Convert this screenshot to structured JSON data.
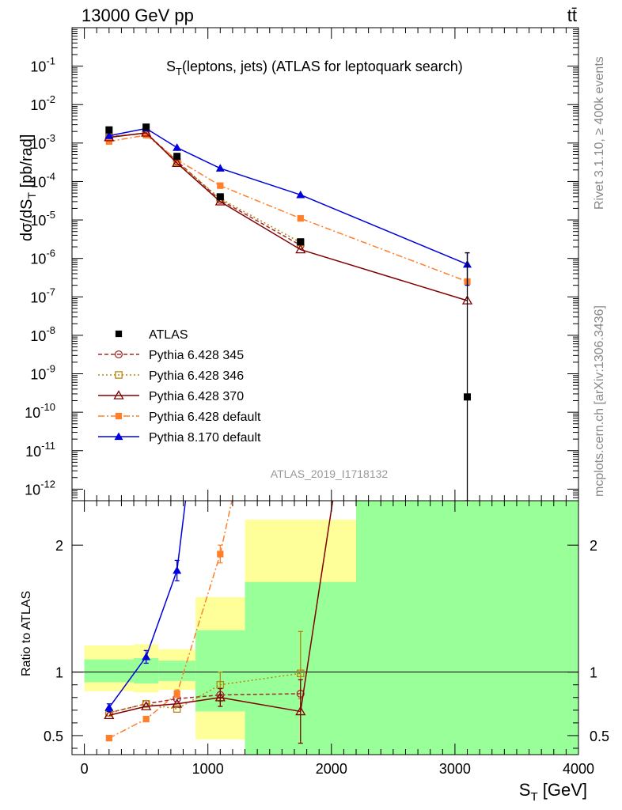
{
  "header": {
    "left": "13000 GeV pp",
    "right": "tt̄"
  },
  "side_labels": {
    "top": "Rivet 3.1.10, ≥ 400k events",
    "bottom": "mcplots.cern.ch [arXiv:1306.3436]"
  },
  "colors": {
    "atlas": "#000000",
    "p345": "#a52a2a",
    "p346": "#b8860b",
    "p370": "#800000",
    "p6def": "#ff7f2a",
    "p8def": "#0000dd",
    "band_green": "#99ff99",
    "band_yellow": "#ffff99"
  },
  "chart_data": [
    {
      "type": "line",
      "panel": "main",
      "title": "S_T(leptons, jets) (ATLAS for leptoquark search)",
      "watermark": "ATLAS_2019_I1718132",
      "ylabel": "dσ/dS_T [pb/rad]",
      "yscale": "log",
      "ylim": [
        5e-13,
        1
      ],
      "xlim": [
        -100,
        4000
      ],
      "ytick_labels": [
        "10^-12",
        "10^-11",
        "10^-10",
        "10^-9",
        "10^-8",
        "10^-7",
        "10^-6",
        "10^-5",
        "10^-4",
        "10^-3",
        "10^-2",
        "10^-1"
      ],
      "legend_position": "lower-left",
      "series": [
        {
          "key": "atlas",
          "name": "ATLAS",
          "marker": "square",
          "x": [
            200,
            500,
            750,
            1100,
            1750,
            3100
          ],
          "y": [
            0.0022,
            0.0026,
            0.00045,
            4e-05,
            2.7e-06,
            2.5e-10
          ],
          "yerr_low": [
            null,
            null,
            null,
            null,
            null,
            5e-13
          ],
          "yerr_high": [
            null,
            null,
            null,
            null,
            null,
            1.4e-06
          ]
        },
        {
          "key": "p345",
          "name": "Pythia 6.428 345",
          "line": "dashed",
          "marker": "open-circle",
          "x": [
            200,
            500,
            750,
            1100,
            1750
          ],
          "y": [
            0.00145,
            0.0018,
            0.00034,
            3.3e-05,
            2.2e-06
          ]
        },
        {
          "key": "p346",
          "name": "Pythia 6.428 346",
          "line": "dotted",
          "marker": "open-square",
          "x": [
            200,
            500,
            750,
            1100,
            1750
          ],
          "y": [
            0.00145,
            0.0018,
            0.00032,
            3.6e-05,
            2.6e-06
          ]
        },
        {
          "key": "p370",
          "name": "Pythia 6.428 370",
          "line": "solid",
          "marker": "open-triangle",
          "x": [
            200,
            500,
            750,
            1100,
            1750,
            3100
          ],
          "y": [
            0.0014,
            0.00185,
            0.0003,
            3e-05,
            1.7e-06,
            8e-08
          ]
        },
        {
          "key": "p6def",
          "name": "Pythia 6.428 default",
          "line": "dashdot",
          "marker": "filled-square",
          "x": [
            200,
            500,
            750,
            1100,
            1750,
            3100
          ],
          "y": [
            0.0011,
            0.0016,
            0.00037,
            7.8e-05,
            1.1e-05,
            2.5e-07
          ]
        },
        {
          "key": "p8def",
          "name": "Pythia 8.170 default",
          "line": "solid",
          "marker": "filled-triangle",
          "x": [
            200,
            500,
            750,
            1100,
            1750,
            3100
          ],
          "y": [
            0.00155,
            0.0024,
            0.00076,
            0.00022,
            4.5e-05,
            7e-07
          ],
          "yerr_low": [
            null,
            null,
            null,
            null,
            null,
            2e-07
          ],
          "yerr_high": [
            null,
            null,
            null,
            null,
            null,
            1.4e-06
          ]
        }
      ]
    },
    {
      "type": "line",
      "panel": "ratio",
      "xlabel": "S_T [GeV]",
      "ylabel": "Ratio to ATLAS",
      "ylim": [
        0.35,
        2.35
      ],
      "xlim": [
        -100,
        4000
      ],
      "yticks": [
        0.5,
        1,
        2
      ],
      "ytick_labels": [
        "0.5",
        "1",
        "2"
      ],
      "xticks": [
        0,
        1000,
        2000,
        3000,
        4000
      ],
      "xtick_labels": [
        "0",
        "1000",
        "2000",
        "3000",
        "4000"
      ],
      "bands": [
        {
          "x0": 0,
          "x1": 400,
          "green": [
            0.92,
            1.1
          ],
          "yellow": [
            0.85,
            1.21
          ]
        },
        {
          "x0": 400,
          "x1": 600,
          "green": [
            0.91,
            1.11
          ],
          "yellow": [
            0.84,
            1.22
          ]
        },
        {
          "x0": 600,
          "x1": 900,
          "green": [
            0.93,
            1.09
          ],
          "yellow": [
            0.86,
            1.18
          ]
        },
        {
          "x0": 900,
          "x1": 1300,
          "green": [
            0.69,
            1.33
          ],
          "yellow": [
            0.47,
            1.59
          ]
        },
        {
          "x0": 1300,
          "x1": 2200,
          "green": [
            0.2,
            1.71
          ],
          "yellow": [
            0.2,
            2.2
          ]
        },
        {
          "x0": 2200,
          "x1": 4000,
          "green": [
            0.2,
            2.5
          ],
          "yellow": [
            0.2,
            2.5
          ]
        }
      ],
      "series": [
        {
          "key": "p345",
          "x": [
            200,
            500,
            750,
            1100,
            1750
          ],
          "y": [
            0.68,
            0.75,
            0.79,
            0.82,
            0.83
          ]
        },
        {
          "key": "p346",
          "x": [
            200,
            500,
            750,
            1100,
            1750
          ],
          "y": [
            0.68,
            0.75,
            0.71,
            0.9,
            0.99
          ],
          "yerr_low": [
            null,
            null,
            null,
            0.13,
            0.2
          ],
          "yerr_high": [
            null,
            null,
            null,
            0.1,
            0.33
          ]
        },
        {
          "key": "p370",
          "x": [
            200,
            500,
            750,
            1100,
            1750,
            2050
          ],
          "y": [
            0.66,
            0.73,
            0.75,
            0.8,
            0.69,
            2.6
          ],
          "yerr_low": [
            null,
            null,
            null,
            0.07,
            0.25,
            null
          ],
          "yerr_high": [
            null,
            null,
            null,
            0.07,
            0.25,
            null
          ]
        },
        {
          "key": "p6def",
          "x": [
            200,
            500,
            750,
            1100,
            1250
          ],
          "y": [
            0.48,
            0.63,
            0.83,
            1.93,
            2.6
          ],
          "yerr_low": [
            null,
            null,
            0.03,
            0.07,
            null
          ],
          "yerr_high": [
            null,
            null,
            0.03,
            0.07,
            null
          ]
        },
        {
          "key": "p8def",
          "x": [
            200,
            500,
            750,
            850
          ],
          "y": [
            0.72,
            1.12,
            1.8,
            2.6
          ],
          "yerr_low": [
            0.03,
            0.05,
            0.08,
            null
          ],
          "yerr_high": [
            0.03,
            0.05,
            0.08,
            null
          ]
        }
      ]
    }
  ]
}
